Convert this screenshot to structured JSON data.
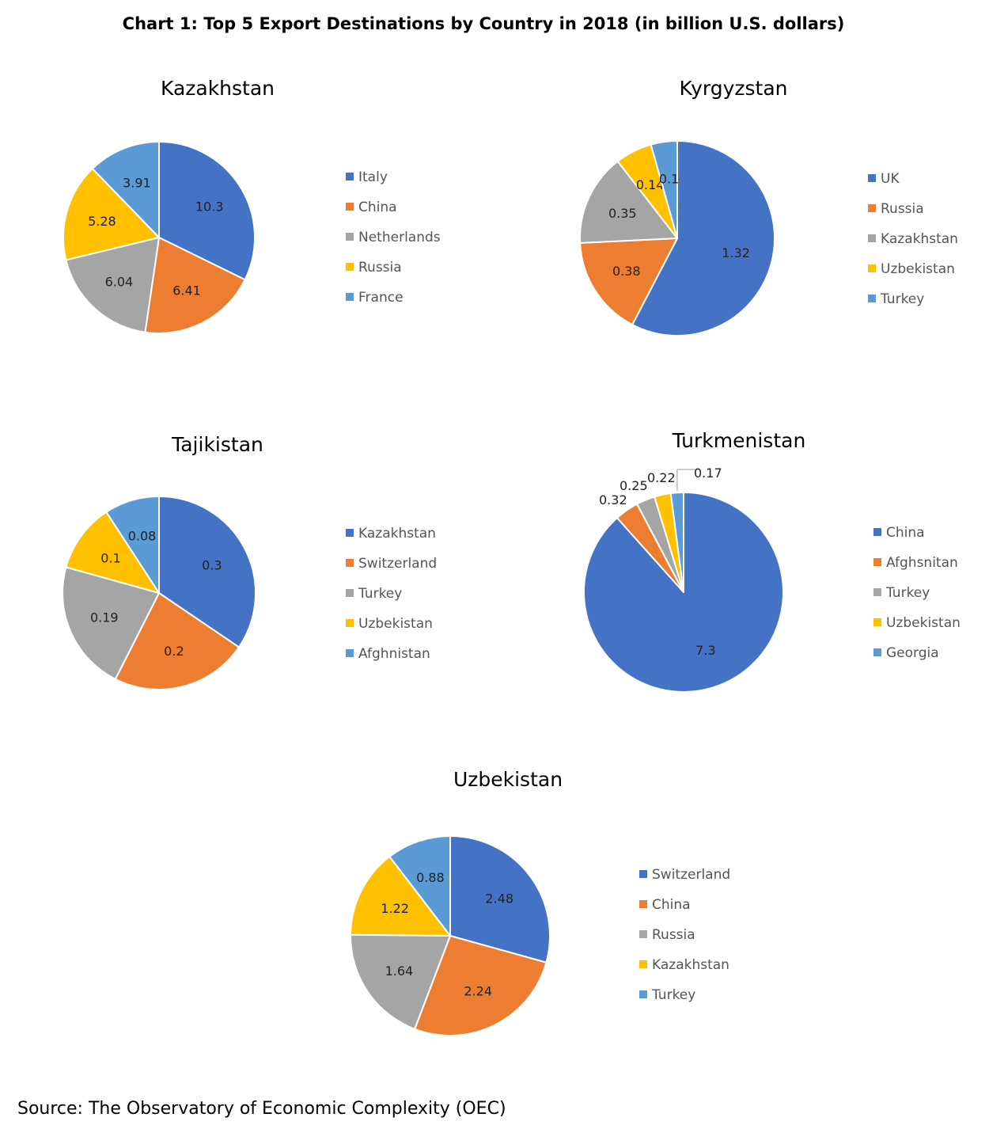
{
  "title": "Chart 1: Top 5 Export Destinations by Country in 2018 (in billion U.S. dollars)",
  "source": "Source: The Observatory of Economic Complexity (OEC)",
  "colors": [
    "#4472C4",
    "#ED7D31",
    "#A5A5A5",
    "#FFC000",
    "#5B9BD5"
  ],
  "chart_data": [
    {
      "type": "pie",
      "title": "Kazakhstan",
      "categories": [
        "Italy",
        "China",
        "Netherlands",
        "Russia",
        "France"
      ],
      "values": [
        10.3,
        6.41,
        6.04,
        5.28,
        3.91
      ],
      "labels": [
        "10.3",
        "6.41",
        "6.04",
        "5.28",
        "3.91"
      ],
      "legend": "right"
    },
    {
      "type": "pie",
      "title": "Kyrgyzstan",
      "categories": [
        "UK",
        "Russia",
        "Kazakhstan",
        "Uzbekistan",
        "Turkey"
      ],
      "values": [
        1.32,
        0.38,
        0.35,
        0.14,
        0.1
      ],
      "labels": [
        "1.32",
        "0.38",
        "0.35",
        "0.14",
        "0.1"
      ],
      "legend": "right"
    },
    {
      "type": "pie",
      "title": "Tajikistan",
      "categories": [
        "Kazakhstan",
        "Switzerland",
        "Turkey",
        "Uzbekistan",
        "Afghnistan"
      ],
      "values": [
        0.3,
        0.2,
        0.19,
        0.1,
        0.08
      ],
      "labels": [
        "0.3",
        "0.2",
        "0.19",
        "0.1",
        "0.08"
      ],
      "legend": "right"
    },
    {
      "type": "pie",
      "title": "Turkmenistan",
      "categories": [
        "China",
        "Afghsnitan",
        "Turkey",
        "Uzbekistan",
        "Georgia"
      ],
      "values": [
        7.3,
        0.32,
        0.25,
        0.22,
        0.17
      ],
      "labels": [
        "7.3",
        "0.32",
        "0.25",
        "0.22",
        "0.17"
      ],
      "legend": "right"
    },
    {
      "type": "pie",
      "title": "Uzbekistan",
      "categories": [
        "Switzerland",
        "China",
        "Russia",
        "Kazakhstan",
        "Turkey"
      ],
      "values": [
        2.48,
        2.24,
        1.64,
        1.22,
        0.88
      ],
      "labels": [
        "2.48",
        "2.24",
        "1.64",
        "1.22",
        "0.88"
      ],
      "legend": "right"
    }
  ]
}
